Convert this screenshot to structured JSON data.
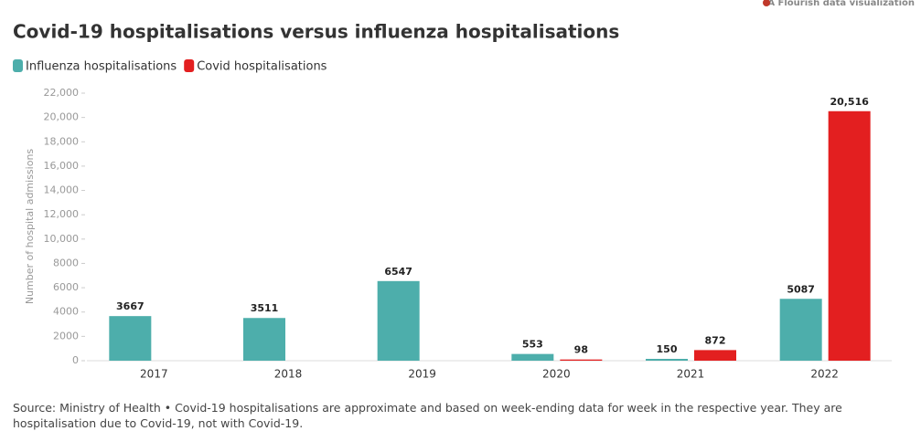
{
  "credit": "A Flourish data visualization",
  "chart_data": {
    "type": "bar",
    "title": "Covid-19 hospitalisations versus influenza hospitalisations",
    "y_label": "Number of hospital admissions",
    "categories": [
      "2017",
      "2018",
      "2019",
      "2020",
      "2021",
      "2022"
    ],
    "series": [
      {
        "name": "Influenza hospitalisations",
        "color": "#4daeab",
        "values": [
          3667,
          3511,
          6547,
          553,
          150,
          5087
        ]
      },
      {
        "name": "Covid hospitalisations",
        "color": "#e31f20",
        "values": [
          null,
          null,
          null,
          98,
          872,
          20516
        ],
        "value_labels": [
          null,
          null,
          null,
          "98",
          "872",
          "20,516"
        ]
      }
    ],
    "ylim": [
      0,
      22000
    ],
    "yticks": [
      0,
      2000,
      4000,
      6000,
      8000,
      {
        "value": 10000,
        "label": "10,000"
      },
      {
        "value": 12000,
        "label": "12,000"
      },
      {
        "value": 14000,
        "label": "14,000"
      },
      {
        "value": 16000,
        "label": "16,000"
      },
      {
        "value": 18000,
        "label": "18,000"
      },
      {
        "value": 20000,
        "label": "20,000"
      },
      {
        "value": 22000,
        "label": "22,000"
      }
    ],
    "legend": "top-left",
    "source": "Source: Ministry of Health • Covid-19 hospitalisations are approximate and based on week-ending data for week in the respective year. They are hospitalisation due to Covid-19, not with Covid-19."
  }
}
